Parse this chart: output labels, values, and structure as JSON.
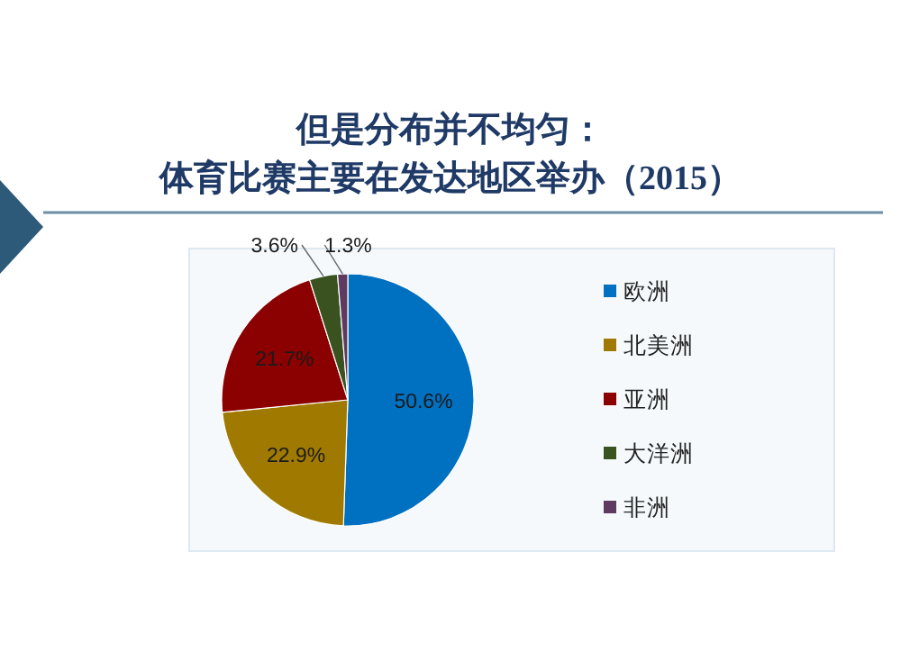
{
  "chart_data": {
    "type": "pie",
    "title": "但是分布并不均匀：",
    "subtitle": "体育比赛主要在发达地区举办（2015）",
    "categories": [
      "欧洲",
      "北美洲",
      "亚洲",
      "大洋洲",
      "非洲"
    ],
    "values": [
      50.6,
      22.9,
      21.7,
      3.6,
      1.3
    ],
    "colors": [
      "#0070c0",
      "#a07a00",
      "#8b0000",
      "#3a5220",
      "#5e3a60"
    ],
    "value_labels": [
      "50.6%",
      "22.9%",
      "21.7%",
      "3.6%",
      "1.3%"
    ],
    "legend": "right"
  }
}
